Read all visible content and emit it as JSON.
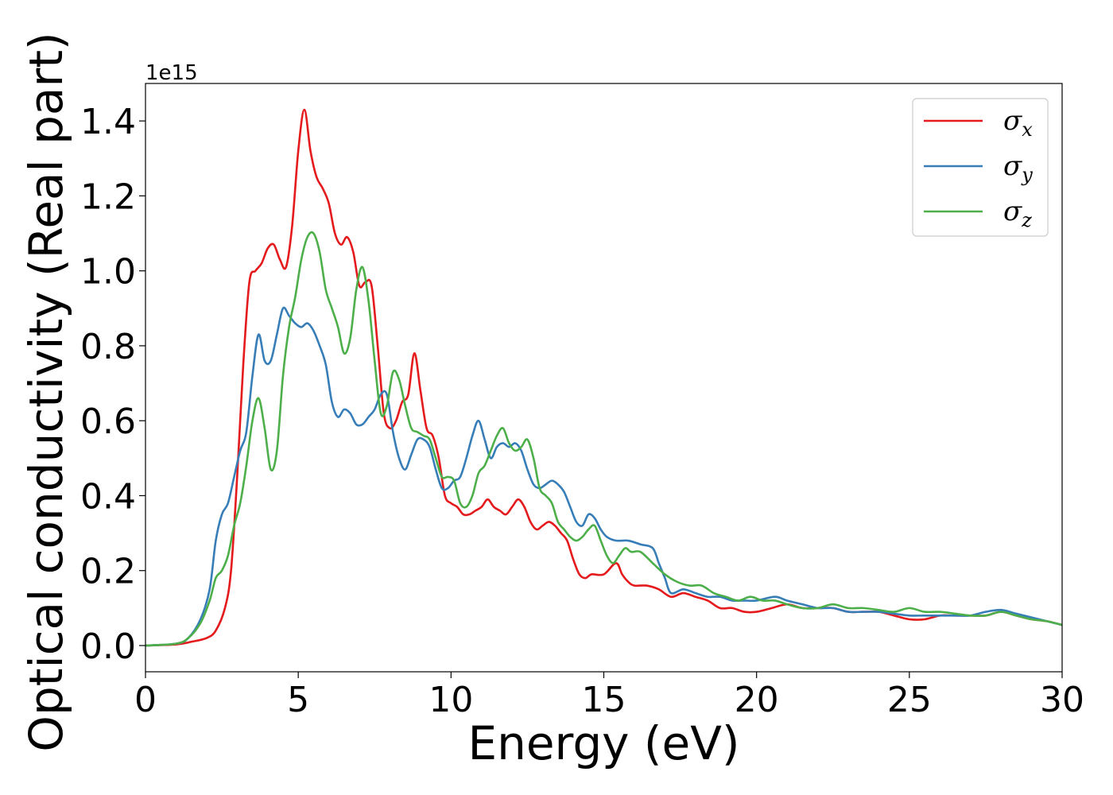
{
  "chart_data": {
    "type": "line",
    "xlabel": "Energy (eV)",
    "ylabel": "Optical conductivity (Real part)",
    "y_offset_label": "1e15",
    "xlim": [
      0,
      30
    ],
    "ylim": [
      -0.07,
      1.5
    ],
    "xticks": [
      0,
      5,
      10,
      15,
      20,
      25,
      30
    ],
    "xtick_labels": [
      "0",
      "5",
      "10",
      "15",
      "20",
      "25",
      "30"
    ],
    "yticks": [
      0.0,
      0.2,
      0.4,
      0.6,
      0.8,
      1.0,
      1.2,
      1.4
    ],
    "ytick_labels": [
      "0.0",
      "0.2",
      "0.4",
      "0.6",
      "0.8",
      "1.0",
      "1.2",
      "1.4"
    ],
    "grid": false,
    "legend_position": "top-right",
    "series": [
      {
        "name": "σx",
        "symbol": "σ",
        "subscript": "x",
        "color": "#e41a1c",
        "points": [
          [
            0,
            0
          ],
          [
            1,
            0.003
          ],
          [
            1.5,
            0.01
          ],
          [
            2,
            0.02
          ],
          [
            2.3,
            0.04
          ],
          [
            2.6,
            0.1
          ],
          [
            2.8,
            0.2
          ],
          [
            3.0,
            0.45
          ],
          [
            3.2,
            0.75
          ],
          [
            3.4,
            0.97
          ],
          [
            3.6,
            1.0
          ],
          [
            3.8,
            1.02
          ],
          [
            4.0,
            1.06
          ],
          [
            4.2,
            1.07
          ],
          [
            4.4,
            1.03
          ],
          [
            4.6,
            1.01
          ],
          [
            4.8,
            1.12
          ],
          [
            5.0,
            1.32
          ],
          [
            5.2,
            1.43
          ],
          [
            5.4,
            1.32
          ],
          [
            5.6,
            1.25
          ],
          [
            5.8,
            1.22
          ],
          [
            6.0,
            1.18
          ],
          [
            6.2,
            1.1
          ],
          [
            6.4,
            1.07
          ],
          [
            6.6,
            1.09
          ],
          [
            6.8,
            1.05
          ],
          [
            7.0,
            0.96
          ],
          [
            7.2,
            0.97
          ],
          [
            7.4,
            0.96
          ],
          [
            7.6,
            0.8
          ],
          [
            7.8,
            0.62
          ],
          [
            8.0,
            0.58
          ],
          [
            8.2,
            0.6
          ],
          [
            8.4,
            0.65
          ],
          [
            8.6,
            0.67
          ],
          [
            8.8,
            0.78
          ],
          [
            9.0,
            0.68
          ],
          [
            9.2,
            0.58
          ],
          [
            9.4,
            0.56
          ],
          [
            9.6,
            0.5
          ],
          [
            9.8,
            0.4
          ],
          [
            10.0,
            0.38
          ],
          [
            10.2,
            0.37
          ],
          [
            10.4,
            0.35
          ],
          [
            10.6,
            0.35
          ],
          [
            10.8,
            0.36
          ],
          [
            11.0,
            0.37
          ],
          [
            11.2,
            0.39
          ],
          [
            11.4,
            0.37
          ],
          [
            11.6,
            0.36
          ],
          [
            11.8,
            0.35
          ],
          [
            12.0,
            0.37
          ],
          [
            12.2,
            0.39
          ],
          [
            12.4,
            0.37
          ],
          [
            12.6,
            0.33
          ],
          [
            12.8,
            0.31
          ],
          [
            13.0,
            0.32
          ],
          [
            13.2,
            0.33
          ],
          [
            13.4,
            0.32
          ],
          [
            13.6,
            0.3
          ],
          [
            13.8,
            0.28
          ],
          [
            14.0,
            0.23
          ],
          [
            14.2,
            0.19
          ],
          [
            14.4,
            0.18
          ],
          [
            14.6,
            0.19
          ],
          [
            15.0,
            0.19
          ],
          [
            15.4,
            0.22
          ],
          [
            15.6,
            0.19
          ],
          [
            15.8,
            0.17
          ],
          [
            16.0,
            0.16
          ],
          [
            16.4,
            0.16
          ],
          [
            16.8,
            0.15
          ],
          [
            17.2,
            0.13
          ],
          [
            17.6,
            0.14
          ],
          [
            18.0,
            0.13
          ],
          [
            18.4,
            0.12
          ],
          [
            18.8,
            0.1
          ],
          [
            19.2,
            0.1
          ],
          [
            19.6,
            0.09
          ],
          [
            20.0,
            0.09
          ],
          [
            20.5,
            0.1
          ],
          [
            21.0,
            0.11
          ],
          [
            21.5,
            0.1
          ],
          [
            22.0,
            0.1
          ],
          [
            22.5,
            0.1
          ],
          [
            23.0,
            0.09
          ],
          [
            23.5,
            0.09
          ],
          [
            24.0,
            0.09
          ],
          [
            24.5,
            0.08
          ],
          [
            25.0,
            0.07
          ],
          [
            25.5,
            0.07
          ],
          [
            26.0,
            0.08
          ],
          [
            26.5,
            0.08
          ],
          [
            27.0,
            0.08
          ],
          [
            27.5,
            0.08
          ],
          [
            28.0,
            0.09
          ],
          [
            28.5,
            0.08
          ],
          [
            29.0,
            0.07
          ],
          [
            29.5,
            0.065
          ],
          [
            30.0,
            0.055
          ]
        ]
      },
      {
        "name": "σy",
        "symbol": "σ",
        "subscript": "y",
        "color": "#377eb8",
        "points": [
          [
            0,
            0
          ],
          [
            1,
            0.005
          ],
          [
            1.4,
            0.02
          ],
          [
            1.8,
            0.07
          ],
          [
            2.1,
            0.15
          ],
          [
            2.3,
            0.28
          ],
          [
            2.5,
            0.35
          ],
          [
            2.7,
            0.38
          ],
          [
            2.9,
            0.45
          ],
          [
            3.1,
            0.52
          ],
          [
            3.3,
            0.57
          ],
          [
            3.5,
            0.72
          ],
          [
            3.7,
            0.83
          ],
          [
            3.9,
            0.76
          ],
          [
            4.1,
            0.76
          ],
          [
            4.3,
            0.83
          ],
          [
            4.5,
            0.9
          ],
          [
            4.7,
            0.88
          ],
          [
            4.9,
            0.86
          ],
          [
            5.1,
            0.85
          ],
          [
            5.3,
            0.86
          ],
          [
            5.5,
            0.84
          ],
          [
            5.7,
            0.8
          ],
          [
            5.9,
            0.75
          ],
          [
            6.1,
            0.65
          ],
          [
            6.3,
            0.61
          ],
          [
            6.5,
            0.63
          ],
          [
            6.7,
            0.62
          ],
          [
            6.9,
            0.59
          ],
          [
            7.1,
            0.59
          ],
          [
            7.3,
            0.61
          ],
          [
            7.5,
            0.63
          ],
          [
            7.7,
            0.67
          ],
          [
            7.9,
            0.67
          ],
          [
            8.1,
            0.57
          ],
          [
            8.3,
            0.5
          ],
          [
            8.5,
            0.47
          ],
          [
            8.7,
            0.51
          ],
          [
            8.9,
            0.55
          ],
          [
            9.1,
            0.55
          ],
          [
            9.3,
            0.53
          ],
          [
            9.5,
            0.47
          ],
          [
            9.7,
            0.42
          ],
          [
            9.9,
            0.42
          ],
          [
            10.1,
            0.44
          ],
          [
            10.3,
            0.45
          ],
          [
            10.5,
            0.5
          ],
          [
            10.7,
            0.56
          ],
          [
            10.9,
            0.6
          ],
          [
            11.1,
            0.55
          ],
          [
            11.3,
            0.5
          ],
          [
            11.5,
            0.53
          ],
          [
            11.7,
            0.54
          ],
          [
            11.9,
            0.53
          ],
          [
            12.1,
            0.54
          ],
          [
            12.3,
            0.52
          ],
          [
            12.5,
            0.47
          ],
          [
            12.7,
            0.43
          ],
          [
            12.9,
            0.42
          ],
          [
            13.1,
            0.43
          ],
          [
            13.3,
            0.44
          ],
          [
            13.5,
            0.43
          ],
          [
            13.7,
            0.41
          ],
          [
            13.9,
            0.37
          ],
          [
            14.1,
            0.33
          ],
          [
            14.3,
            0.32
          ],
          [
            14.5,
            0.35
          ],
          [
            14.7,
            0.34
          ],
          [
            14.9,
            0.31
          ],
          [
            15.1,
            0.29
          ],
          [
            15.4,
            0.28
          ],
          [
            15.8,
            0.28
          ],
          [
            16.2,
            0.27
          ],
          [
            16.6,
            0.26
          ],
          [
            16.8,
            0.22
          ],
          [
            17.0,
            0.18
          ],
          [
            17.2,
            0.14
          ],
          [
            17.6,
            0.15
          ],
          [
            18.0,
            0.14
          ],
          [
            18.4,
            0.13
          ],
          [
            18.8,
            0.13
          ],
          [
            19.2,
            0.12
          ],
          [
            19.6,
            0.12
          ],
          [
            20.0,
            0.12
          ],
          [
            20.6,
            0.13
          ],
          [
            21.0,
            0.12
          ],
          [
            21.5,
            0.11
          ],
          [
            22.0,
            0.1
          ],
          [
            22.5,
            0.1
          ],
          [
            23.0,
            0.09
          ],
          [
            23.5,
            0.09
          ],
          [
            24.0,
            0.09
          ],
          [
            24.5,
            0.085
          ],
          [
            25.0,
            0.08
          ],
          [
            25.5,
            0.08
          ],
          [
            26.0,
            0.08
          ],
          [
            26.5,
            0.08
          ],
          [
            27.0,
            0.08
          ],
          [
            27.5,
            0.09
          ],
          [
            28.0,
            0.095
          ],
          [
            28.5,
            0.085
          ],
          [
            29.0,
            0.075
          ],
          [
            29.5,
            0.065
          ],
          [
            30.0,
            0.055
          ]
        ]
      },
      {
        "name": "σz",
        "symbol": "σ",
        "subscript": "z",
        "color": "#4daf4a",
        "points": [
          [
            0,
            0
          ],
          [
            1,
            0.005
          ],
          [
            1.4,
            0.02
          ],
          [
            1.8,
            0.06
          ],
          [
            2.1,
            0.12
          ],
          [
            2.3,
            0.18
          ],
          [
            2.5,
            0.2
          ],
          [
            2.7,
            0.24
          ],
          [
            2.9,
            0.32
          ],
          [
            3.1,
            0.38
          ],
          [
            3.3,
            0.48
          ],
          [
            3.5,
            0.6
          ],
          [
            3.7,
            0.66
          ],
          [
            3.9,
            0.58
          ],
          [
            4.1,
            0.47
          ],
          [
            4.3,
            0.52
          ],
          [
            4.5,
            0.72
          ],
          [
            4.7,
            0.85
          ],
          [
            4.9,
            0.93
          ],
          [
            5.1,
            1.03
          ],
          [
            5.3,
            1.09
          ],
          [
            5.5,
            1.1
          ],
          [
            5.7,
            1.05
          ],
          [
            5.9,
            0.95
          ],
          [
            6.1,
            0.9
          ],
          [
            6.3,
            0.85
          ],
          [
            6.5,
            0.78
          ],
          [
            6.7,
            0.82
          ],
          [
            6.9,
            0.95
          ],
          [
            7.1,
            1.01
          ],
          [
            7.3,
            0.92
          ],
          [
            7.5,
            0.76
          ],
          [
            7.7,
            0.62
          ],
          [
            7.9,
            0.64
          ],
          [
            8.1,
            0.73
          ],
          [
            8.3,
            0.71
          ],
          [
            8.5,
            0.64
          ],
          [
            8.7,
            0.58
          ],
          [
            8.9,
            0.57
          ],
          [
            9.1,
            0.56
          ],
          [
            9.3,
            0.55
          ],
          [
            9.5,
            0.5
          ],
          [
            9.7,
            0.45
          ],
          [
            9.9,
            0.45
          ],
          [
            10.1,
            0.44
          ],
          [
            10.3,
            0.38
          ],
          [
            10.5,
            0.37
          ],
          [
            10.7,
            0.4
          ],
          [
            10.9,
            0.46
          ],
          [
            11.1,
            0.48
          ],
          [
            11.3,
            0.52
          ],
          [
            11.5,
            0.56
          ],
          [
            11.7,
            0.58
          ],
          [
            11.9,
            0.54
          ],
          [
            12.1,
            0.52
          ],
          [
            12.3,
            0.53
          ],
          [
            12.5,
            0.55
          ],
          [
            12.7,
            0.5
          ],
          [
            12.9,
            0.42
          ],
          [
            13.1,
            0.4
          ],
          [
            13.3,
            0.38
          ],
          [
            13.5,
            0.33
          ],
          [
            13.7,
            0.31
          ],
          [
            13.9,
            0.29
          ],
          [
            14.1,
            0.28
          ],
          [
            14.3,
            0.29
          ],
          [
            14.5,
            0.31
          ],
          [
            14.7,
            0.32
          ],
          [
            14.9,
            0.28
          ],
          [
            15.1,
            0.24
          ],
          [
            15.3,
            0.22
          ],
          [
            15.5,
            0.24
          ],
          [
            15.7,
            0.26
          ],
          [
            15.9,
            0.25
          ],
          [
            16.2,
            0.25
          ],
          [
            16.6,
            0.22
          ],
          [
            17.0,
            0.19
          ],
          [
            17.4,
            0.17
          ],
          [
            17.8,
            0.16
          ],
          [
            18.2,
            0.16
          ],
          [
            18.6,
            0.14
          ],
          [
            19.0,
            0.13
          ],
          [
            19.4,
            0.12
          ],
          [
            19.8,
            0.13
          ],
          [
            20.2,
            0.12
          ],
          [
            20.6,
            0.12
          ],
          [
            21.0,
            0.11
          ],
          [
            21.5,
            0.1
          ],
          [
            22.0,
            0.1
          ],
          [
            22.5,
            0.11
          ],
          [
            23.0,
            0.1
          ],
          [
            23.5,
            0.1
          ],
          [
            24.0,
            0.095
          ],
          [
            24.5,
            0.09
          ],
          [
            25.0,
            0.1
          ],
          [
            25.5,
            0.09
          ],
          [
            26.0,
            0.09
          ],
          [
            26.5,
            0.085
          ],
          [
            27.0,
            0.08
          ],
          [
            27.5,
            0.08
          ],
          [
            28.0,
            0.09
          ],
          [
            28.5,
            0.08
          ],
          [
            29.0,
            0.07
          ],
          [
            29.5,
            0.065
          ],
          [
            30.0,
            0.055
          ]
        ]
      }
    ]
  }
}
